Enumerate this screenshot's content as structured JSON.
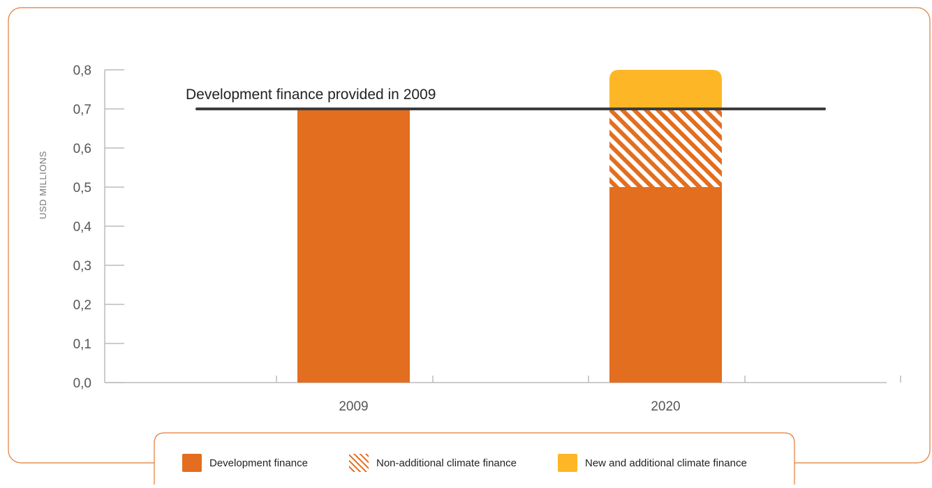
{
  "colors": {
    "development": "#E36E1F",
    "new_additional": "#FDB726",
    "frame": "#E07B32",
    "reference_line": "#3C3C3C",
    "axis": "#BBBBBB"
  },
  "chart_data": {
    "type": "bar",
    "stacked": true,
    "ylabel": "USD MILLIONS",
    "xlabel": "",
    "ylim": [
      0,
      0.8
    ],
    "y_ticks": [
      "0,0",
      "0,1",
      "0,2",
      "0,3",
      "0,4",
      "0,5",
      "0,6",
      "0,7",
      "0,8"
    ],
    "categories": [
      "2009",
      "2020"
    ],
    "series": [
      {
        "name": "Development finance",
        "values": [
          0.7,
          0.5
        ],
        "pattern": "solid",
        "color": "#E36E1F"
      },
      {
        "name": "Non-additional climate finance",
        "values": [
          0,
          0.2
        ],
        "pattern": "hatch",
        "color": "#E36E1F"
      },
      {
        "name": "New and additional climate finance",
        "values": [
          0,
          0.1
        ],
        "pattern": "solid",
        "color": "#FDB726"
      }
    ],
    "reference_line": {
      "value": 0.7,
      "label": "Development finance provided in 2009"
    },
    "grid": false,
    "legend_position": "bottom"
  }
}
